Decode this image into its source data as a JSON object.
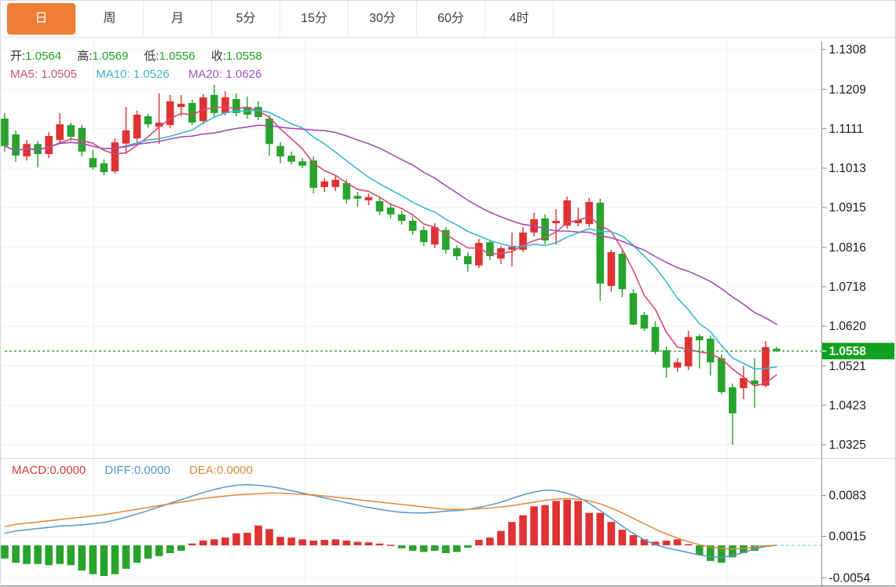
{
  "toolbar": {
    "tabs": [
      {
        "name": "tab-day",
        "label": "日",
        "active": true
      },
      {
        "name": "tab-week",
        "label": "周",
        "active": false
      },
      {
        "name": "tab-month",
        "label": "月",
        "active": false
      },
      {
        "name": "tab-5min",
        "label": "5分",
        "active": false
      },
      {
        "name": "tab-15min",
        "label": "15分",
        "active": false
      },
      {
        "name": "tab-30min",
        "label": "30分",
        "active": false
      },
      {
        "name": "tab-60min",
        "label": "60分",
        "active": false
      },
      {
        "name": "tab-4hour",
        "label": "4时",
        "active": false
      }
    ]
  },
  "main_chart": {
    "open_label": "开:",
    "open": "1.0564",
    "high_label": "高:",
    "high": "1.0569",
    "low_label": "低:",
    "low": "1.0556",
    "close_label": "收:",
    "close": "1.0558",
    "ma5_label": "MA5:",
    "ma5": "1.0505",
    "ma10_label": "MA10:",
    "ma10": "1.0526",
    "ma20_label": "MA20:",
    "ma20": "1.0626",
    "axis_ticks": [
      "1.1308",
      "1.1209",
      "1.1111",
      "1.1013",
      "1.0915",
      "1.0816",
      "1.0718",
      "1.0620",
      "1.0521",
      "1.0423",
      "1.0325"
    ],
    "current_price_label": "1.0558"
  },
  "macd_panel": {
    "macd_label": "MACD:",
    "macd": "0.0000",
    "diff_label": "DIFF:",
    "diff": "0.0000",
    "dea_label": "DEA:",
    "dea": "0.0000",
    "axis_ticks": [
      "0.0083",
      "0.0015",
      "-0.0054"
    ]
  },
  "colors": {
    "accent_orange": "#ee7d33",
    "candle_up": "#e03232",
    "candle_down": "#28a32c",
    "ma5": "#d84a72",
    "ma10": "#3ab7d0",
    "ma20": "#a24fb4",
    "diff_line": "#5596d2",
    "dea_line": "#e2873c",
    "price_tag_green": "#12a01f",
    "dotted_price_line": "#2ba32f"
  },
  "chart_data": {
    "type": "candlestick",
    "title": "Daily candlestick chart with MA5/MA10/MA20 overlays and MACD sub-panel",
    "price_axis": {
      "max": 1.1308,
      "min": 1.0325,
      "ticks": [
        1.1308,
        1.1209,
        1.1111,
        1.1013,
        1.0915,
        1.0816,
        1.0718,
        1.062,
        1.0521,
        1.0423,
        1.0325
      ]
    },
    "current_price": 1.0558,
    "last_bar": {
      "open": 1.0564,
      "high": 1.0569,
      "low": 1.0556,
      "close": 1.0558
    },
    "ma_values": {
      "ma5": 1.0505,
      "ma10": 1.0526,
      "ma20": 1.0626
    },
    "ma_periods": [
      5,
      10,
      20
    ],
    "candles_ohlc": [
      [
        1.1136,
        1.115,
        1.1054,
        1.1068
      ],
      [
        1.1097,
        1.1107,
        1.1029,
        1.1044
      ],
      [
        1.1042,
        1.1083,
        1.1032,
        1.1073
      ],
      [
        1.1073,
        1.1081,
        1.1015,
        1.1048
      ],
      [
        1.1048,
        1.1103,
        1.1038,
        1.1093
      ],
      [
        1.1083,
        1.115,
        1.1073,
        1.1122
      ],
      [
        1.112,
        1.1126,
        1.1081,
        1.1091
      ],
      [
        1.1113,
        1.112,
        1.1042,
        1.1054
      ],
      [
        1.1038,
        1.1058,
        1.1009,
        1.1015
      ],
      [
        1.1025,
        1.1034,
        1.0995,
        1.1003
      ],
      [
        1.1005,
        1.1087,
        1.0999,
        1.1077
      ],
      [
        1.1074,
        1.1165,
        1.1048,
        1.1107
      ],
      [
        1.1087,
        1.1156,
        1.1077,
        1.1146
      ],
      [
        1.1142,
        1.1148,
        1.1113,
        1.1122
      ],
      [
        1.1116,
        1.1199,
        1.1073,
        1.1126
      ],
      [
        1.112,
        1.1195,
        1.1113,
        1.1179
      ],
      [
        1.1165,
        1.1195,
        1.1142,
        1.1173
      ],
      [
        1.1175,
        1.1183,
        1.112,
        1.1126
      ],
      [
        1.113,
        1.1197,
        1.1122,
        1.1189
      ],
      [
        1.1195,
        1.122,
        1.114,
        1.115
      ],
      [
        1.115,
        1.1204,
        1.1144,
        1.1189
      ],
      [
        1.1185,
        1.1199,
        1.1142,
        1.115
      ],
      [
        1.1165,
        1.1191,
        1.1136,
        1.1146
      ],
      [
        1.1165,
        1.1179,
        1.1132,
        1.114
      ],
      [
        1.1136,
        1.1144,
        1.1044,
        1.1073
      ],
      [
        1.1068,
        1.1077,
        1.1025,
        1.1042
      ],
      [
        1.1044,
        1.1054,
        1.1023,
        1.1029
      ],
      [
        1.103,
        1.1038,
        1.1013,
        1.1019
      ],
      [
        1.1032,
        1.1042,
        1.095,
        1.0964
      ],
      [
        1.0966,
        1.0989,
        1.0954,
        1.098
      ],
      [
        1.0966,
        1.0993,
        1.0956,
        1.0984
      ],
      [
        1.0976,
        1.0986,
        1.0925,
        1.0935
      ],
      [
        1.0944,
        1.0954,
        1.0917,
        1.0937
      ],
      [
        1.0933,
        1.095,
        1.0921,
        1.0941
      ],
      [
        1.0931,
        1.0941,
        1.0896,
        1.0905
      ],
      [
        1.0915,
        1.0925,
        1.0888,
        1.0898
      ],
      [
        1.0898,
        1.0907,
        1.0872,
        1.0882
      ],
      [
        1.0882,
        1.0892,
        1.0847,
        1.0857
      ],
      [
        1.0859,
        1.0868,
        1.0819,
        1.0829
      ],
      [
        1.0823,
        1.0876,
        1.0814,
        1.0866
      ],
      [
        1.0859,
        1.0866,
        1.08,
        1.081
      ],
      [
        1.0814,
        1.0821,
        1.0784,
        1.0794
      ],
      [
        1.0794,
        1.0804,
        1.0755,
        1.0774
      ],
      [
        1.0771,
        1.0837,
        1.0765,
        1.0827
      ],
      [
        1.0829,
        1.0835,
        1.0784,
        1.0794
      ],
      [
        1.0788,
        1.0819,
        1.0774,
        1.0814
      ],
      [
        1.081,
        1.0853,
        1.0769,
        1.0817
      ],
      [
        1.081,
        1.0866,
        1.0804,
        1.0853
      ],
      [
        1.0853,
        1.0902,
        1.0843,
        1.0886
      ],
      [
        1.0888,
        1.0898,
        1.0823,
        1.0833
      ],
      [
        1.0876,
        1.0911,
        1.0823,
        1.0882
      ],
      [
        1.087,
        1.0942,
        1.0862,
        1.0933
      ],
      [
        1.0876,
        1.0915,
        1.0868,
        1.0884
      ],
      [
        1.0874,
        1.0939,
        1.0866,
        1.0929
      ],
      [
        1.0927,
        1.0937,
        1.0683,
        1.0726
      ],
      [
        1.072,
        1.081,
        1.0706,
        1.0804
      ],
      [
        1.08,
        1.0808,
        1.0692,
        1.0712
      ],
      [
        1.0702,
        1.0712,
        1.0622,
        1.0624
      ],
      [
        1.0648,
        1.0655,
        1.0608,
        1.0614
      ],
      [
        1.0618,
        1.0632,
        1.055,
        1.0556
      ],
      [
        1.056,
        1.0569,
        1.0491,
        1.0517
      ],
      [
        1.0517,
        1.054,
        1.0507,
        1.053
      ],
      [
        1.052,
        1.0608,
        1.0511,
        1.0593
      ],
      [
        1.0595,
        1.06,
        1.0515,
        1.0585
      ],
      [
        1.0589,
        1.0597,
        1.0497,
        1.053
      ],
      [
        1.054,
        1.055,
        1.0452,
        1.0456
      ],
      [
        1.0468,
        1.0477,
        1.0325,
        1.0403
      ],
      [
        1.0466,
        1.0521,
        1.0438,
        1.0491
      ],
      [
        1.0485,
        1.054,
        1.0417,
        1.0475
      ],
      [
        1.0472,
        1.0583,
        1.0468,
        1.0568
      ],
      [
        1.0564,
        1.0569,
        1.0556,
        1.0558
      ]
    ],
    "macd": {
      "scale": 0.0001,
      "axis_ticks": [
        0.0083,
        0.0015,
        -0.0054
      ],
      "hist": [
        -22,
        -29,
        -31,
        -31,
        -33,
        -31,
        -33,
        -42,
        -48,
        -51,
        -48,
        -39,
        -29,
        -22,
        -18,
        -13,
        -9,
        3,
        8,
        10,
        13,
        20,
        21,
        33,
        27,
        14,
        13,
        10,
        8,
        9,
        10,
        8,
        6,
        5,
        3,
        1,
        -5,
        -9,
        -11,
        -9,
        -13,
        -11,
        -4,
        9,
        13,
        24,
        39,
        50,
        65,
        67,
        74,
        76,
        74,
        54,
        54,
        39,
        26,
        17,
        10,
        6,
        8,
        10,
        2,
        -16,
        -26,
        -29,
        -20,
        -13,
        -9,
        -2,
        0
      ],
      "diff": [
        20,
        24,
        26,
        28,
        30,
        32,
        33,
        34,
        36,
        38,
        42,
        47,
        52,
        58,
        64,
        70,
        76,
        82,
        88,
        93,
        97,
        100,
        101,
        100,
        98,
        95,
        91,
        87,
        83,
        79,
        75,
        71,
        67,
        63,
        60,
        57,
        55,
        54,
        54,
        55,
        57,
        58,
        60,
        63,
        67,
        72,
        78,
        84,
        89,
        92,
        91,
        87,
        80,
        70,
        58,
        45,
        32,
        20,
        9,
        1,
        -4,
        -8,
        -12,
        -16,
        -19,
        -20,
        -17,
        -12,
        -6,
        -2,
        0
      ],
      "dea": [
        31,
        35,
        37,
        39,
        41,
        43,
        45,
        47,
        49,
        51,
        54,
        57,
        60,
        63,
        66,
        69,
        72,
        75,
        78,
        80,
        82,
        84,
        85,
        86,
        87,
        87,
        86,
        85,
        84,
        82,
        80,
        78,
        76,
        74,
        72,
        70,
        68,
        66,
        64,
        62,
        60,
        60,
        60,
        61,
        62,
        64,
        66,
        69,
        72,
        75,
        77,
        78,
        77,
        74,
        69,
        62,
        54,
        45,
        36,
        27,
        19,
        12,
        6,
        1,
        -3,
        -5,
        -6,
        -5,
        -3,
        -1,
        0
      ]
    }
  }
}
